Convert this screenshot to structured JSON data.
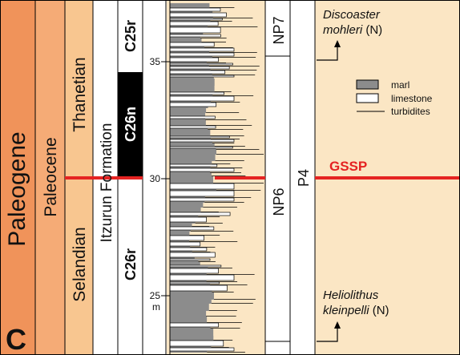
{
  "panel_label": "C",
  "columns": {
    "system": "Paleogene",
    "series": "Paleocene",
    "stage_upper": "Thanetian",
    "stage_lower": "Selandian",
    "formation": "Itzurun Formation",
    "magneto_upper": "C25r",
    "magneto_middle": "C26n",
    "magneto_lower": "C26r",
    "nanno_upper": "NP7",
    "nanno_lower": "NP6",
    "foram_zone": "P4"
  },
  "scale": {
    "tick_35": "35",
    "tick_30": "30",
    "tick_25": "25",
    "unit": "m"
  },
  "events": {
    "upper_species": "Discoaster",
    "upper_species_2": "mohleri",
    "upper_suffix": " (N)",
    "lower_species": "Heliolithus",
    "lower_species_2": "kleinpelli",
    "lower_suffix": " (N)"
  },
  "legend": {
    "marl": "marl",
    "limestone": "limestone",
    "turbidites": "turbidites"
  },
  "boundary_label": "GSSP",
  "colors": {
    "system_fill": "#f0935a",
    "series_fill": "#f5ab76",
    "stage_fill": "#f8c690",
    "section_bg": "#fbe6c4",
    "marl": "#8c8c8c",
    "gssp_line": "#e52322"
  }
}
